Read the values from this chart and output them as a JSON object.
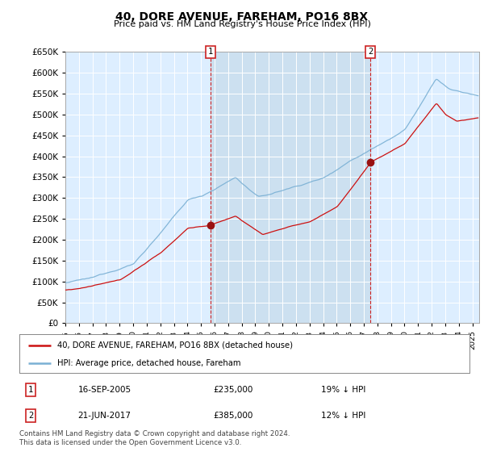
{
  "title": "40, DORE AVENUE, FAREHAM, PO16 8BX",
  "subtitle": "Price paid vs. HM Land Registry's House Price Index (HPI)",
  "ylim": [
    0,
    650000
  ],
  "yticks": [
    0,
    50000,
    100000,
    150000,
    200000,
    250000,
    300000,
    350000,
    400000,
    450000,
    500000,
    550000,
    600000,
    650000
  ],
  "xlim_start": 1995.0,
  "xlim_end": 2025.5,
  "background_color": "#ffffff",
  "plot_bg_color": "#ddeeff",
  "shade_color": "#cce0f0",
  "grid_color": "#ffffff",
  "transaction1_year": 2005.71,
  "transaction2_year": 2017.47,
  "transaction1_price": 235000,
  "transaction2_price": 385000,
  "legend_entries": [
    "40, DORE AVENUE, FAREHAM, PO16 8BX (detached house)",
    "HPI: Average price, detached house, Fareham"
  ],
  "legend_colors": [
    "#cc1111",
    "#7ab0d4"
  ],
  "annotation_rows": [
    [
      "1",
      "16-SEP-2005",
      "£235,000",
      "19% ↓ HPI"
    ],
    [
      "2",
      "21-JUN-2017",
      "£385,000",
      "12% ↓ HPI"
    ]
  ],
  "footer": "Contains HM Land Registry data © Crown copyright and database right 2024.\nThis data is licensed under the Open Government Licence v3.0.",
  "hpi_color": "#7ab0d4",
  "property_color": "#cc1111",
  "marker_color": "#991111"
}
